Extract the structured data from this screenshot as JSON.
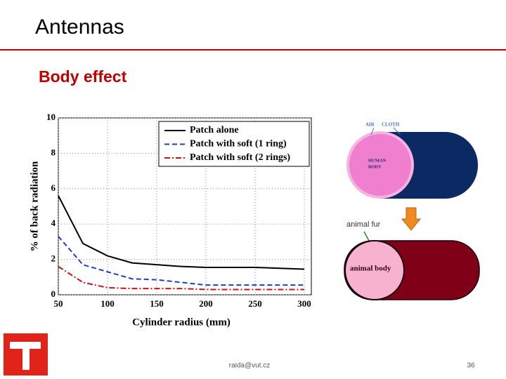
{
  "header": {
    "title": "Antennas",
    "subtitle": "Body effect"
  },
  "chart_data": {
    "type": "line",
    "x_label": "Cylinder radius (mm)",
    "y_label": "% of back radiation",
    "x": [
      50,
      75,
      100,
      125,
      150,
      175,
      200,
      225,
      250,
      275,
      300
    ],
    "series": [
      {
        "name": "Patch alone",
        "color": "#000000",
        "dash": "solid",
        "values": [
          5.6,
          2.9,
          2.2,
          1.8,
          1.7,
          1.6,
          1.55,
          1.55,
          1.55,
          1.5,
          1.45
        ]
      },
      {
        "name": "Patch with soft (1 ring)",
        "color": "#1f3fcf",
        "dash": "dashed",
        "values": [
          3.3,
          1.7,
          1.3,
          0.9,
          0.85,
          0.7,
          0.55,
          0.55,
          0.55,
          0.55,
          0.55
        ]
      },
      {
        "name": "Patch with soft (2 rings)",
        "color": "#d01010",
        "dash": "dashdot",
        "values": [
          1.6,
          0.7,
          0.4,
          0.35,
          0.35,
          0.35,
          0.3,
          0.3,
          0.3,
          0.3,
          0.3
        ]
      }
    ],
    "xlim": [
      50,
      300
    ],
    "xticks": [
      50,
      100,
      150,
      200,
      250,
      300
    ],
    "ylim": [
      0,
      10
    ],
    "yticks": [
      0,
      2,
      4,
      6,
      8,
      10
    ],
    "grid": true,
    "legend": "upper right"
  },
  "diagram": {
    "top": {
      "air": "AIR",
      "cloth": "CLOTH",
      "body": [
        "HUMAN",
        "BODY"
      ]
    },
    "transition": "animal fur",
    "bottom": {
      "body": "animal body"
    }
  },
  "footer": {
    "email": "raida@vut.cz",
    "page": 36
  }
}
